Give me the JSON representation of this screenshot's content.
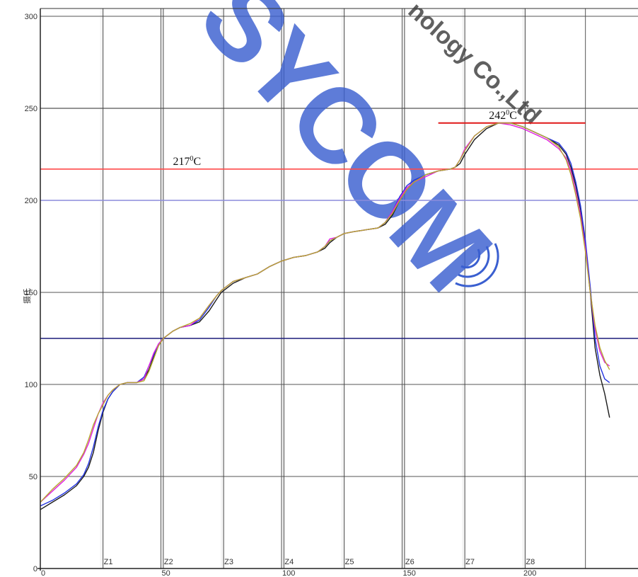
{
  "chart_data": {
    "type": "line",
    "title": "",
    "xlabel": "",
    "ylabel": "摄氏",
    "xlim": [
      0,
      240
    ],
    "ylim": [
      0,
      300
    ],
    "x_ticks": [
      {
        "value": 0,
        "label": "0"
      },
      {
        "value": 50,
        "label": "50"
      },
      {
        "value": 100,
        "label": "100"
      },
      {
        "value": 150,
        "label": "150"
      },
      {
        "value": 200,
        "label": "200"
      }
    ],
    "y_ticks": [
      {
        "value": 0,
        "label": "0"
      },
      {
        "value": 50,
        "label": "50"
      },
      {
        "value": 100,
        "label": "100"
      },
      {
        "value": 150,
        "label": "150"
      },
      {
        "value": 200,
        "label": "200"
      },
      {
        "value": 250,
        "label": "250"
      },
      {
        "value": 300,
        "label": "300"
      }
    ],
    "grid": true,
    "zones": [
      {
        "label": "Z1",
        "start": 26
      },
      {
        "label": "Z2",
        "start": 51
      },
      {
        "label": "Z3",
        "start": 76
      },
      {
        "label": "Z4",
        "start": 101
      },
      {
        "label": "Z5",
        "start": 126
      },
      {
        "label": "Z6",
        "start": 151
      },
      {
        "label": "Z7",
        "start": 176
      },
      {
        "label": "Z8",
        "start": 201
      }
    ],
    "extra_vlines": [
      50,
      100,
      150,
      226
    ],
    "reference_lines": [
      {
        "y": 217,
        "color": "#ff4a4a",
        "x_from": 0,
        "x_to": 248,
        "label": "217",
        "label_x": 55
      },
      {
        "y": 242,
        "color": "#e01818",
        "x_from": 165,
        "x_to": 226,
        "label": "242",
        "label_x": 186
      },
      {
        "y": 200,
        "color": "#8c8cdc",
        "x_from": 0,
        "x_to": 248
      },
      {
        "y": 125,
        "color": "#1c1c7a",
        "x_from": 0,
        "x_to": 248
      }
    ],
    "annotation_unit": "C",
    "annotation_degree": "0",
    "x": [
      0,
      5,
      10,
      15,
      18,
      20,
      22,
      24,
      26,
      28,
      30,
      33,
      36,
      40,
      43,
      45,
      47,
      49,
      51,
      53,
      55,
      58,
      62,
      66,
      70,
      73,
      75,
      77,
      80,
      85,
      90,
      95,
      100,
      105,
      110,
      115,
      118,
      120,
      123,
      126,
      130,
      135,
      140,
      143,
      146,
      149,
      152,
      155,
      160,
      165,
      170,
      172,
      174,
      176,
      180,
      185,
      190,
      195,
      200,
      205,
      210,
      215,
      218,
      220,
      222,
      224,
      226,
      228,
      230,
      232,
      234,
      236
    ],
    "series": [
      {
        "name": "",
        "color": "#1a1a1a",
        "values": [
          32,
          36,
          40,
          45,
          50,
          55,
          63,
          75,
          85,
          92,
          96,
          100,
          101,
          101,
          103,
          108,
          115,
          121,
          125,
          127,
          129,
          131,
          132,
          134,
          140,
          146,
          150,
          152,
          155,
          158,
          160,
          164,
          167,
          169,
          170,
          172,
          174,
          177,
          180,
          182,
          183,
          184,
          185,
          187,
          192,
          200,
          206,
          210,
          214,
          216,
          217,
          218,
          220,
          225,
          233,
          239,
          242,
          242,
          240,
          237,
          234,
          230,
          225,
          218,
          208,
          195,
          175,
          150,
          120,
          105,
          95,
          82
        ]
      },
      {
        "name": "",
        "color": "#2333e0",
        "values": [
          34,
          37,
          41,
          46,
          51,
          57,
          66,
          77,
          86,
          92,
          96,
          100,
          101,
          101,
          104,
          110,
          116,
          122,
          125,
          127,
          129,
          131,
          132,
          135,
          142,
          148,
          151,
          153,
          156,
          158,
          160,
          164,
          167,
          169,
          170,
          172,
          175,
          178,
          180,
          182,
          183,
          184,
          185,
          188,
          194,
          202,
          208,
          211,
          214,
          216,
          217,
          218,
          222,
          227,
          235,
          240,
          242,
          242,
          240,
          237,
          234,
          231,
          226,
          220,
          210,
          197,
          178,
          153,
          125,
          110,
          103,
          101
        ]
      },
      {
        "name": "",
        "color": "#e020e0",
        "values": [
          36,
          42,
          48,
          55,
          62,
          68,
          76,
          84,
          90,
          94,
          97,
          100,
          101,
          101,
          103,
          110,
          117,
          122,
          125,
          127,
          129,
          131,
          132,
          136,
          143,
          148,
          151,
          153,
          156,
          158,
          160,
          164,
          167,
          169,
          170,
          172,
          175,
          179,
          180,
          182,
          183,
          184,
          185,
          188,
          194,
          201,
          207,
          210,
          213,
          216,
          217,
          218,
          222,
          228,
          235,
          240,
          242,
          241,
          239,
          236,
          233,
          228,
          223,
          216,
          205,
          192,
          174,
          150,
          130,
          118,
          112,
          110
        ]
      },
      {
        "name": "",
        "color": "#b8a830",
        "values": [
          36,
          43,
          49,
          56,
          63,
          70,
          78,
          84,
          89,
          94,
          97,
          100,
          101,
          101,
          102,
          107,
          114,
          121,
          125,
          127,
          129,
          131,
          133,
          136,
          143,
          148,
          151,
          153,
          156,
          158,
          160,
          164,
          167,
          169,
          170,
          172,
          175,
          178,
          180,
          182,
          183,
          184,
          185,
          188,
          193,
          200,
          206,
          210,
          214,
          216,
          217,
          218,
          222,
          227,
          235,
          240,
          242,
          242,
          240,
          237,
          234,
          229,
          222,
          214,
          203,
          190,
          172,
          150,
          132,
          120,
          113,
          108
        ]
      }
    ]
  },
  "watermark": {
    "brand": "SYCOM",
    "tail": "nology Co.,Ltd",
    "brand_color": "#3a5fd0",
    "tail_color": "#444444"
  }
}
